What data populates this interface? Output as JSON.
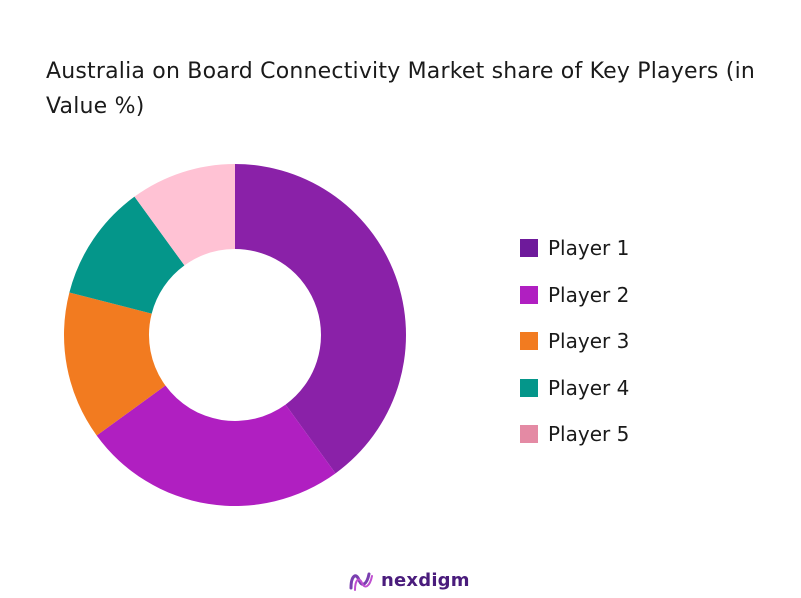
{
  "chart_data": {
    "type": "pie",
    "title": "Australia on Board Connectivity Market share of Key Players (in Value %)",
    "donut": true,
    "legend_position": "right",
    "series": [
      {
        "name": "Player 1",
        "value": 40,
        "color": "#8a21a8"
      },
      {
        "name": "Player 2",
        "value": 25,
        "color": "#b01fc1"
      },
      {
        "name": "Player 3",
        "value": 14,
        "color": "#f27b20"
      },
      {
        "name": "Player 4",
        "value": 11,
        "color": "#04968a"
      },
      {
        "name": "Player 5",
        "value": 10,
        "color": "#ffc2d4"
      }
    ],
    "legend_swatch_colors": [
      "#6e1a9b",
      "#b01fc1",
      "#f27b20",
      "#04968a",
      "#e48aa4"
    ]
  },
  "branding": {
    "logo_text": "nexdigm",
    "logo_color": "#4a1c7c"
  }
}
